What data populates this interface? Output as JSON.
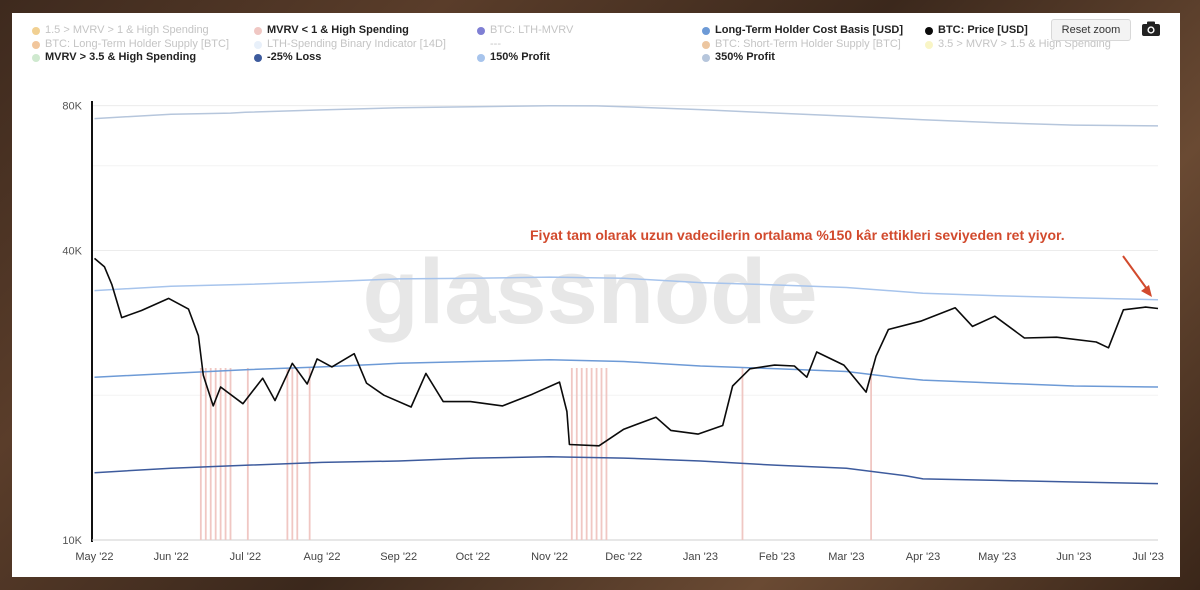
{
  "toolbar": {
    "reset_zoom": "Reset zoom",
    "camera_icon": "camera-icon"
  },
  "colors": {
    "black": "#0b0b0b",
    "profit350": "#b6c6dc",
    "profit150": "#a7c4ec",
    "cost_basis": "#6d9ad6",
    "loss25": "#3d5b9d",
    "spending_bar": "#f0c7c3",
    "annotation": "#d24a2d"
  },
  "annotation": {
    "text": "Fiyat tam olarak uzun vadecilerin ortalama %150 kâr ettikleri seviyeden ret yiyor."
  },
  "watermark": "glassnode",
  "chart_data": {
    "type": "line",
    "title": "",
    "y_scale": "log",
    "ylim": [
      10000,
      85000
    ],
    "y_ticks": [
      {
        "label": "80K",
        "value": 80000
      },
      {
        "label": "40K",
        "value": 40000
      },
      {
        "label": "10K",
        "value": 10000
      }
    ],
    "x_ticks": [
      {
        "label": "May '22",
        "date": "2022-05-01"
      },
      {
        "label": "Jun '22",
        "date": "2022-06-01"
      },
      {
        "label": "Jul '22",
        "date": "2022-07-01"
      },
      {
        "label": "Aug '22",
        "date": "2022-08-01"
      },
      {
        "label": "Sep '22",
        "date": "2022-09-01"
      },
      {
        "label": "Oct '22",
        "date": "2022-10-01"
      },
      {
        "label": "Nov '22",
        "date": "2022-11-01"
      },
      {
        "label": "Dec '22",
        "date": "2022-12-01"
      },
      {
        "label": "Jan '23",
        "date": "2023-01-01"
      },
      {
        "label": "Feb '23",
        "date": "2023-02-01"
      },
      {
        "label": "Mar '23",
        "date": "2023-03-01"
      },
      {
        "label": "Apr '23",
        "date": "2023-04-01"
      },
      {
        "label": "May '23",
        "date": "2023-05-01"
      },
      {
        "label": "Jun '23",
        "date": "2023-06-01"
      },
      {
        "label": "Jul '23",
        "date": "2023-07-01"
      }
    ],
    "xlim": [
      "2022-04-30",
      "2023-07-05"
    ],
    "legend": [
      {
        "label": "1.5 > MVRV > 1 & High Spending",
        "color": "#e8b04a",
        "visible": false
      },
      {
        "label": "MVRV < 1 & High Spending",
        "color": "#f0c7c3",
        "visible": true
      },
      {
        "label": "BTC: LTH-MVRV",
        "color": "#2a2ab8",
        "visible": false
      },
      {
        "label": "Long-Term Holder Cost Basis [USD]",
        "color": "#6d9ad6",
        "visible": true
      },
      {
        "label": "BTC: Price [USD]",
        "color": "#0b0b0b",
        "visible": true
      },
      {
        "label": "BTC: Long-Term Holder Supply [BTC]",
        "color": "#e8a05a",
        "visible": false
      },
      {
        "label": "LTH-Spending Binary Indicator [14D]",
        "color": "#d8e6f6",
        "visible": false
      },
      {
        "label": "---",
        "color": "",
        "visible": false
      },
      {
        "label": "BTC: Short-Term Holder Supply [BTC]",
        "color": "#e0a060",
        "visible": false
      },
      {
        "label": "3.5 > MVRV > 1.5 & High Spending",
        "color": "#f5eea0",
        "visible": false
      },
      {
        "label": "MVRV > 3.5 & High Spending",
        "color": "#cfe9cf",
        "visible": true
      },
      {
        "label": "-25% Loss",
        "color": "#3d5b9d",
        "visible": true
      },
      {
        "label": "150% Profit",
        "color": "#a7c4ec",
        "visible": true
      },
      {
        "label": "350% Profit",
        "color": "#b6c6dc",
        "visible": true
      }
    ],
    "series": [
      {
        "name": "350% Profit",
        "color": "#b6c6dc",
        "points": [
          [
            "2022-05-01",
            75200
          ],
          [
            "2022-06-01",
            76800
          ],
          [
            "2022-06-25",
            77200
          ],
          [
            "2022-07-01",
            77500
          ],
          [
            "2022-08-01",
            78400
          ],
          [
            "2022-09-01",
            79200
          ],
          [
            "2022-10-01",
            79600
          ],
          [
            "2022-11-01",
            80000
          ],
          [
            "2022-11-20",
            79900
          ],
          [
            "2022-12-01",
            79600
          ],
          [
            "2023-01-01",
            78500
          ],
          [
            "2023-02-01",
            77200
          ],
          [
            "2023-03-01",
            76100
          ],
          [
            "2023-04-01",
            74800
          ],
          [
            "2023-05-01",
            73700
          ],
          [
            "2023-06-01",
            72900
          ],
          [
            "2023-07-05",
            72600
          ]
        ]
      },
      {
        "name": "150% Profit",
        "color": "#a7c4ec",
        "points": [
          [
            "2022-05-01",
            33000
          ],
          [
            "2022-06-01",
            33700
          ],
          [
            "2022-07-01",
            34000
          ],
          [
            "2022-08-01",
            34400
          ],
          [
            "2022-09-01",
            34900
          ],
          [
            "2022-10-01",
            35000
          ],
          [
            "2022-11-01",
            35200
          ],
          [
            "2022-12-01",
            35000
          ],
          [
            "2023-01-01",
            34300
          ],
          [
            "2023-02-01",
            33900
          ],
          [
            "2023-03-01",
            33500
          ],
          [
            "2023-04-01",
            32600
          ],
          [
            "2023-05-01",
            32200
          ],
          [
            "2023-06-01",
            31900
          ],
          [
            "2023-07-05",
            31600
          ]
        ]
      },
      {
        "name": "Long-Term Holder Cost Basis [USD]",
        "color": "#6d9ad6",
        "points": [
          [
            "2022-05-01",
            21800
          ],
          [
            "2022-06-01",
            22200
          ],
          [
            "2022-07-01",
            22600
          ],
          [
            "2022-08-01",
            22900
          ],
          [
            "2022-09-01",
            23300
          ],
          [
            "2022-10-01",
            23500
          ],
          [
            "2022-11-01",
            23700
          ],
          [
            "2022-12-01",
            23500
          ],
          [
            "2023-01-01",
            23000
          ],
          [
            "2023-02-01",
            22700
          ],
          [
            "2023-03-01",
            22400
          ],
          [
            "2023-03-20",
            21800
          ],
          [
            "2023-04-01",
            21500
          ],
          [
            "2023-05-01",
            21200
          ],
          [
            "2023-06-01",
            20900
          ],
          [
            "2023-07-05",
            20800
          ]
        ]
      },
      {
        "name": "-25% Loss",
        "color": "#3d5b9d",
        "points": [
          [
            "2022-05-01",
            13800
          ],
          [
            "2022-06-01",
            14100
          ],
          [
            "2022-07-01",
            14300
          ],
          [
            "2022-08-01",
            14500
          ],
          [
            "2022-09-01",
            14600
          ],
          [
            "2022-10-01",
            14800
          ],
          [
            "2022-11-01",
            14900
          ],
          [
            "2022-12-01",
            14800
          ],
          [
            "2023-01-01",
            14600
          ],
          [
            "2023-02-01",
            14300
          ],
          [
            "2023-03-01",
            14100
          ],
          [
            "2023-03-25",
            13600
          ],
          [
            "2023-04-01",
            13400
          ],
          [
            "2023-05-01",
            13300
          ],
          [
            "2023-06-01",
            13200
          ],
          [
            "2023-07-05",
            13100
          ]
        ]
      },
      {
        "name": "BTC: Price [USD]",
        "color": "#0b0b0b",
        "points": [
          [
            "2022-05-01",
            38500
          ],
          [
            "2022-05-05",
            37000
          ],
          [
            "2022-05-08",
            34000
          ],
          [
            "2022-05-12",
            29000
          ],
          [
            "2022-05-20",
            30000
          ],
          [
            "2022-05-31",
            31800
          ],
          [
            "2022-06-08",
            30200
          ],
          [
            "2022-06-12",
            26600
          ],
          [
            "2022-06-14",
            22000
          ],
          [
            "2022-06-18",
            19000
          ],
          [
            "2022-06-21",
            20800
          ],
          [
            "2022-06-30",
            19200
          ],
          [
            "2022-07-08",
            21700
          ],
          [
            "2022-07-13",
            19500
          ],
          [
            "2022-07-20",
            23300
          ],
          [
            "2022-07-26",
            21100
          ],
          [
            "2022-07-30",
            23800
          ],
          [
            "2022-08-05",
            22900
          ],
          [
            "2022-08-14",
            24400
          ],
          [
            "2022-08-19",
            21200
          ],
          [
            "2022-08-26",
            20000
          ],
          [
            "2022-09-06",
            18900
          ],
          [
            "2022-09-12",
            22200
          ],
          [
            "2022-09-19",
            19400
          ],
          [
            "2022-09-30",
            19400
          ],
          [
            "2022-10-13",
            19000
          ],
          [
            "2022-10-25",
            20100
          ],
          [
            "2022-11-05",
            21300
          ],
          [
            "2022-11-08",
            18500
          ],
          [
            "2022-11-09",
            15800
          ],
          [
            "2022-11-21",
            15700
          ],
          [
            "2022-12-01",
            17000
          ],
          [
            "2022-12-14",
            18000
          ],
          [
            "2022-12-20",
            16900
          ],
          [
            "2022-12-31",
            16600
          ],
          [
            "2023-01-10",
            17300
          ],
          [
            "2023-01-14",
            20900
          ],
          [
            "2023-01-21",
            22700
          ],
          [
            "2023-01-31",
            23100
          ],
          [
            "2023-02-08",
            23000
          ],
          [
            "2023-02-13",
            21800
          ],
          [
            "2023-02-17",
            24600
          ],
          [
            "2023-02-28",
            23100
          ],
          [
            "2023-03-09",
            20300
          ],
          [
            "2023-03-13",
            24100
          ],
          [
            "2023-03-18",
            27400
          ],
          [
            "2023-03-31",
            28500
          ],
          [
            "2023-04-14",
            30400
          ],
          [
            "2023-04-21",
            27800
          ],
          [
            "2023-04-30",
            29200
          ],
          [
            "2023-05-12",
            26300
          ],
          [
            "2023-05-25",
            26400
          ],
          [
            "2023-06-10",
            25800
          ],
          [
            "2023-06-15",
            25100
          ],
          [
            "2023-06-21",
            30100
          ],
          [
            "2023-06-30",
            30500
          ],
          [
            "2023-07-05",
            30300
          ]
        ]
      }
    ],
    "spending_bars": [
      "2022-06-13",
      "2022-06-15",
      "2022-06-17",
      "2022-06-19",
      "2022-06-21",
      "2022-06-23",
      "2022-06-25",
      "2022-07-02",
      "2022-07-18",
      "2022-07-20",
      "2022-07-22",
      "2022-07-27",
      "2022-11-10",
      "2022-11-12",
      "2022-11-14",
      "2022-11-16",
      "2022-11-18",
      "2022-11-20",
      "2022-11-22",
      "2022-11-24",
      "2023-01-18",
      "2023-03-11"
    ]
  }
}
